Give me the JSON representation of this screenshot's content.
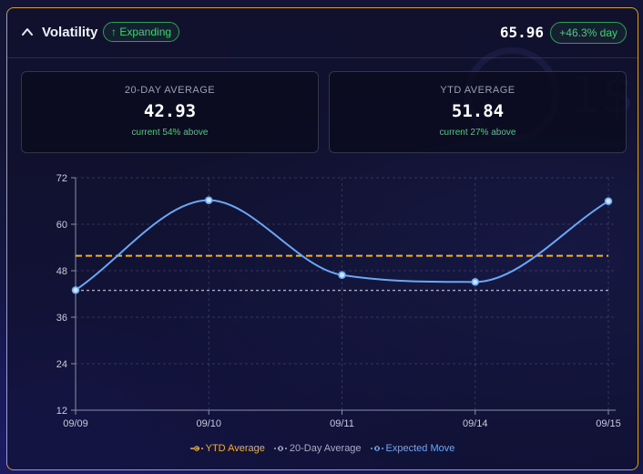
{
  "header": {
    "title": "Volatility",
    "trend_badge": "↑ Expanding",
    "current_value": "65.96",
    "change_label": "+46.3% day"
  },
  "cards": [
    {
      "label": "20-DAY AVERAGE",
      "value": "42.93",
      "note": "current 54% above"
    },
    {
      "label": "YTD AVERAGE",
      "value": "51.84",
      "note": "current 27% above"
    }
  ],
  "background": {
    "watermark_text": "1$"
  },
  "colors": {
    "accent_gold": "#c9a23a",
    "positive_green": "#3fd07a",
    "ytd_line": "#f0b030",
    "avg20_line": "#a8acc2",
    "expected_move": "#6aa8f5"
  },
  "chart_data": {
    "type": "line",
    "categories": [
      "09/09",
      "09/10",
      "09/11",
      "09/14",
      "09/15"
    ],
    "ylim": [
      12,
      72
    ],
    "yticks": [
      12,
      24,
      36,
      48,
      60,
      72
    ],
    "grid": true,
    "legend_position": "bottom",
    "series": [
      {
        "name": "YTD Average",
        "values": [
          51.84,
          51.84,
          51.84,
          51.84,
          51.84
        ],
        "style": "dashed"
      },
      {
        "name": "20-Day Average",
        "values": [
          42.93,
          42.93,
          42.93,
          42.93,
          42.93
        ],
        "style": "dotted"
      },
      {
        "name": "Expected Move",
        "values": [
          43.0,
          66.2,
          46.9,
          45.1,
          65.96
        ],
        "style": "smooth"
      }
    ]
  }
}
